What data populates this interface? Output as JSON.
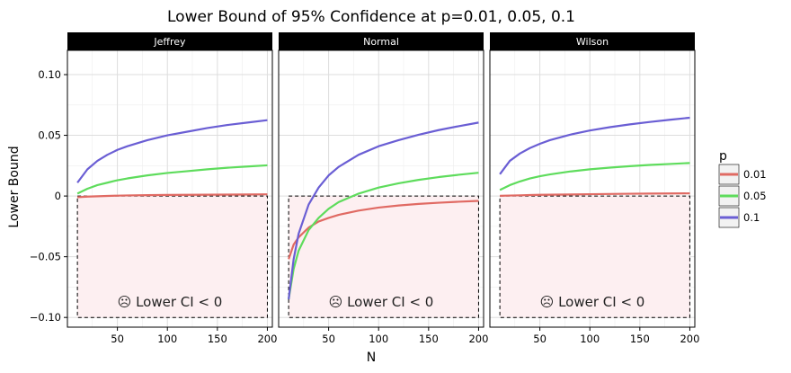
{
  "chart_data": {
    "type": "line",
    "title": "Lower Bound of 95% Confidence at p=0.01, 0.05, 0.1",
    "xlabel": "N",
    "ylabel": "Lower Bound",
    "xlim": [
      0,
      205
    ],
    "ylim": [
      -0.108,
      0.12
    ],
    "x_ticks": [
      50,
      100,
      150,
      200
    ],
    "x_tick_labels": [
      "50",
      "100",
      "150",
      "200"
    ],
    "y_ticks": [
      -0.1,
      -0.05,
      0,
      0.05,
      0.1
    ],
    "y_tick_labels": [
      "−0.10",
      "−0.05",
      "0",
      "0.05",
      "0.10"
    ],
    "grid": true,
    "legend": {
      "title": "p",
      "position": "right",
      "entries": [
        {
          "label": "0.01",
          "color": "#e06a63"
        },
        {
          "label": "0.05",
          "color": "#5edc5c"
        },
        {
          "label": "0.1",
          "color": "#6a5ed4"
        }
      ]
    },
    "annotation": {
      "text": "☹ Lower CI < 0",
      "rect_x": [
        10,
        200
      ],
      "rect_y": [
        -0.1,
        0
      ],
      "fill": "#fdeff1",
      "stroke": "#000000"
    },
    "panels": [
      {
        "name": "Jeffrey",
        "series": [
          {
            "p": "0.01",
            "x": [
              10,
              20,
              30,
              40,
              50,
              60,
              80,
              100,
              120,
              140,
              160,
              180,
              200
            ],
            "y": [
              -0.001,
              -0.0005,
              -0.0002,
              0.0001,
              0.0003,
              0.0005,
              0.0007,
              0.0009,
              0.001,
              0.0011,
              0.0012,
              0.0013,
              0.0014
            ]
          },
          {
            "p": "0.05",
            "x": [
              10,
              20,
              30,
              40,
              50,
              60,
              80,
              100,
              120,
              140,
              160,
              180,
              200
            ],
            "y": [
              0.002,
              0.006,
              0.009,
              0.011,
              0.013,
              0.0145,
              0.017,
              0.019,
              0.0205,
              0.022,
              0.0233,
              0.0243,
              0.0253
            ]
          },
          {
            "p": "0.1",
            "x": [
              10,
              20,
              30,
              40,
              50,
              60,
              80,
              100,
              120,
              140,
              160,
              180,
              200
            ],
            "y": [
              0.011,
              0.022,
              0.029,
              0.034,
              0.038,
              0.041,
              0.046,
              0.05,
              0.053,
              0.056,
              0.0585,
              0.0605,
              0.0625
            ]
          }
        ]
      },
      {
        "name": "Normal",
        "series": [
          {
            "p": "0.01",
            "x": [
              10,
              15,
              20,
              30,
              40,
              50,
              60,
              80,
              100,
              120,
              140,
              160,
              180,
              200
            ],
            "y": [
              -0.052,
              -0.04,
              -0.034,
              -0.026,
              -0.021,
              -0.018,
              -0.0155,
              -0.012,
              -0.0095,
              -0.0078,
              -0.0065,
              -0.0055,
              -0.0047,
              -0.004
            ]
          },
          {
            "p": "0.05",
            "x": [
              10,
              15,
              20,
              30,
              40,
              50,
              60,
              80,
              100,
              120,
              140,
              160,
              180,
              200
            ],
            "y": [
              -0.085,
              -0.06,
              -0.045,
              -0.028,
              -0.018,
              -0.0105,
              -0.005,
              0.002,
              0.007,
              0.0105,
              0.0133,
              0.0156,
              0.0175,
              0.0192
            ]
          },
          {
            "p": "0.1",
            "x": [
              10,
              15,
              20,
              30,
              40,
              50,
              60,
              80,
              100,
              120,
              140,
              160,
              180,
              200
            ],
            "y": [
              -0.085,
              -0.052,
              -0.031,
              -0.007,
              0.007,
              0.017,
              0.024,
              0.034,
              0.041,
              0.046,
              0.0505,
              0.0543,
              0.0575,
              0.0605
            ]
          }
        ]
      },
      {
        "name": "Wilson",
        "series": [
          {
            "p": "0.01",
            "x": [
              10,
              20,
              30,
              40,
              50,
              60,
              80,
              100,
              120,
              140,
              160,
              180,
              200
            ],
            "y": [
              0.0002,
              0.0004,
              0.0006,
              0.0008,
              0.001,
              0.0011,
              0.0013,
              0.0015,
              0.0017,
              0.0019,
              0.002,
              0.0021,
              0.0022
            ]
          },
          {
            "p": "0.05",
            "x": [
              10,
              20,
              30,
              40,
              50,
              60,
              80,
              100,
              120,
              140,
              160,
              180,
              200
            ],
            "y": [
              0.005,
              0.009,
              0.012,
              0.0145,
              0.0163,
              0.0178,
              0.0202,
              0.022,
              0.0234,
              0.0246,
              0.0256,
              0.0264,
              0.0272
            ]
          },
          {
            "p": "0.1",
            "x": [
              10,
              20,
              30,
              40,
              50,
              60,
              80,
              100,
              120,
              140,
              160,
              180,
              200
            ],
            "y": [
              0.018,
              0.029,
              0.035,
              0.0395,
              0.043,
              0.046,
              0.0505,
              0.054,
              0.0567,
              0.059,
              0.061,
              0.0628,
              0.0645
            ]
          }
        ]
      }
    ]
  }
}
